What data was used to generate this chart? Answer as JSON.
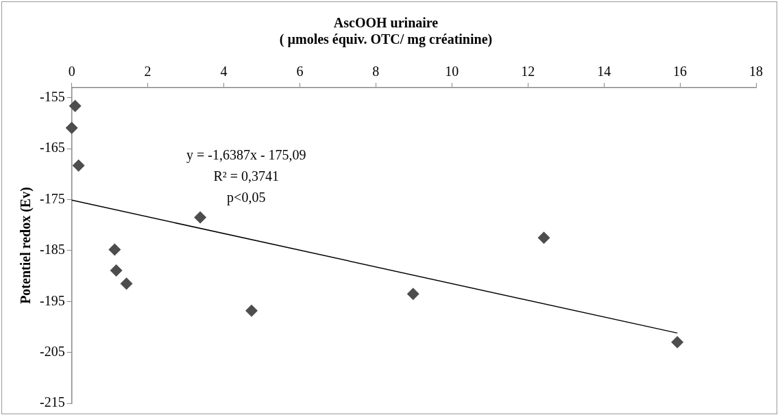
{
  "chart_data": {
    "type": "scatter",
    "title": [
      "AscOOH urinaire",
      "( µmoles équiv. OTC/ mg créatinine)"
    ],
    "ylabel": "Potentiel redox (Ev)",
    "xlim": [
      0,
      18
    ],
    "xticks": [
      0,
      2,
      4,
      6,
      8,
      10,
      12,
      14,
      16,
      18
    ],
    "ylim": [
      -215,
      -153
    ],
    "yticks": [
      -215,
      -205,
      -195,
      -185,
      -175,
      -165,
      -155
    ],
    "grid": false,
    "legend": false,
    "marker": "diamond",
    "series": [
      {
        "color": "#4d4d4d",
        "x": [
          0.09,
          0.0,
          0.18,
          3.38,
          1.13,
          1.17,
          1.44,
          4.73,
          8.98,
          12.42,
          15.93
        ],
        "values": [
          -156.6,
          -160.9,
          -168.3,
          -178.5,
          -184.8,
          -188.9,
          -191.5,
          -196.8,
          -193.5,
          -182.5,
          -203.0
        ]
      },
      {
        "type": "line",
        "color": "#000000",
        "marker": "none",
        "x": [
          0,
          15.93
        ],
        "values": [
          -175.1,
          -201.2
        ]
      }
    ],
    "annotations": [
      "y = -1,6387x - 175,09",
      "R² = 0,3741",
      "p<0,05"
    ]
  }
}
